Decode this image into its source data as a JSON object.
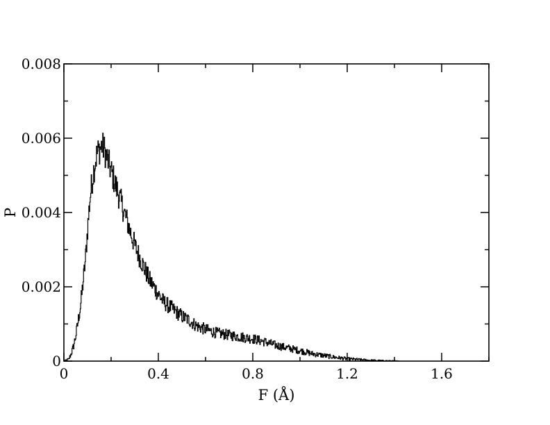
{
  "chart_data": {
    "type": "line",
    "xlabel": "F (Å)",
    "ylabel": "P",
    "xlim": [
      0,
      1.8
    ],
    "ylim": [
      0,
      0.008
    ],
    "x_major_ticks": [
      0,
      0.4,
      0.8,
      1.2,
      1.6
    ],
    "x_tick_labels": [
      "0",
      "0.4",
      "0.8",
      "1.2",
      "1.6"
    ],
    "x_minor_ticks": [
      0.2,
      0.6,
      1.0,
      1.4,
      1.8
    ],
    "y_major_ticks": [
      0,
      0.002,
      0.004,
      0.006,
      0.008
    ],
    "y_tick_labels": [
      "0",
      "0.002",
      "0.004",
      "0.006",
      "0.008"
    ],
    "y_minor_ticks": [
      0.001,
      0.003,
      0.005,
      0.007
    ],
    "grid": false,
    "legend": "none",
    "line_color": "#000000",
    "series": [
      {
        "x": [
          0.0,
          0.02,
          0.03,
          0.04,
          0.05,
          0.06,
          0.07,
          0.08,
          0.09,
          0.1,
          0.11,
          0.12,
          0.13,
          0.14,
          0.15,
          0.16,
          0.17,
          0.18,
          0.19,
          0.2,
          0.21,
          0.22,
          0.23,
          0.24,
          0.25,
          0.26,
          0.28,
          0.3,
          0.32,
          0.34,
          0.36,
          0.38,
          0.4,
          0.42,
          0.44,
          0.46,
          0.48,
          0.5,
          0.53,
          0.56,
          0.6,
          0.65,
          0.7,
          0.75,
          0.8,
          0.85,
          0.9,
          0.95,
          1.0,
          1.05,
          1.1,
          1.15,
          1.2,
          1.25,
          1.3,
          1.35,
          1.4,
          1.42
        ],
        "y": [
          0.0,
          5e-05,
          0.0002,
          0.0004,
          0.0007,
          0.0011,
          0.0015,
          0.0021,
          0.0027,
          0.0036,
          0.0044,
          0.0049,
          0.0053,
          0.0056,
          0.0057,
          0.0058,
          0.0057,
          0.0055,
          0.0053,
          0.0051,
          0.0049,
          0.0047,
          0.0045,
          0.0043,
          0.0041,
          0.0039,
          0.0035,
          0.0031,
          0.0028,
          0.0025,
          0.0022,
          0.002,
          0.0018,
          0.0016,
          0.0015,
          0.0014,
          0.0013,
          0.0012,
          0.0011,
          0.00095,
          0.00085,
          0.00075,
          0.0007,
          0.00065,
          0.0006,
          0.00052,
          0.00042,
          0.00035,
          0.00028,
          0.0002,
          0.00015,
          0.0001,
          6e-05,
          4e-05,
          2e-05,
          1e-05,
          5e-06,
          0.0
        ]
      }
    ]
  }
}
